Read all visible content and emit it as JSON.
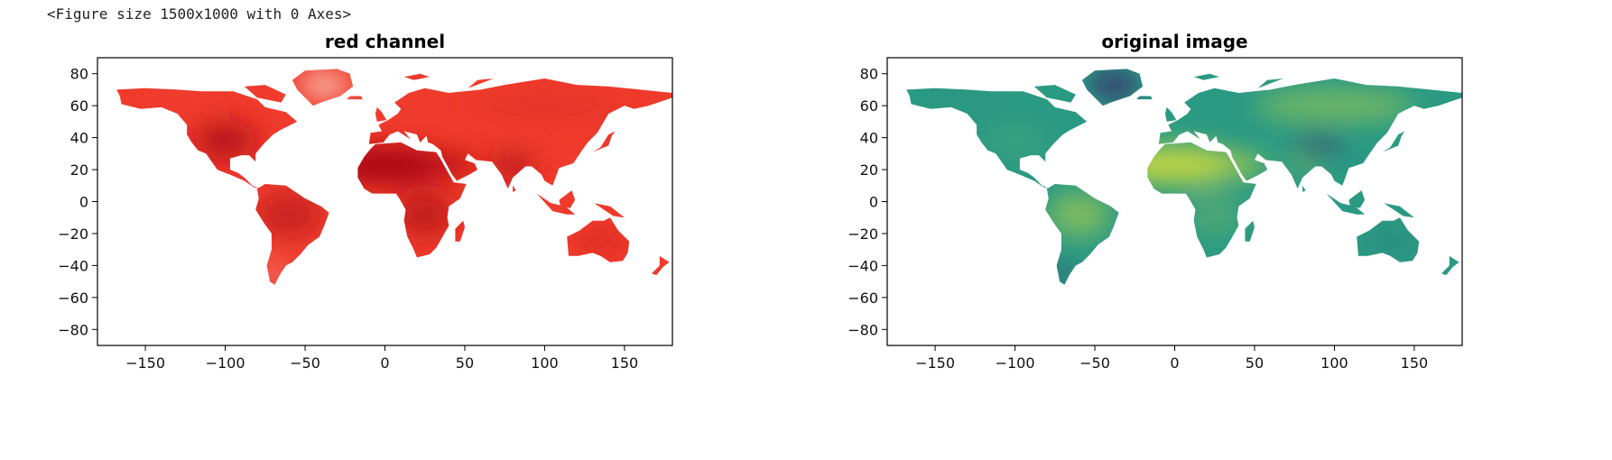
{
  "output_text": "<Figure size 1500x1000 with 0 Axes>",
  "chart_data": [
    {
      "type": "heatmap",
      "title": "red channel",
      "xlim": [
        -180,
        180
      ],
      "ylim": [
        -90,
        90
      ],
      "xticks": [
        -150,
        -100,
        -50,
        0,
        50,
        100,
        150
      ],
      "yticks": [
        80,
        60,
        40,
        20,
        0,
        -20,
        -40,
        -60,
        -80
      ],
      "xtick_labels": [
        "−150",
        "−100",
        "−50",
        "0",
        "50",
        "100",
        "150"
      ],
      "ytick_labels": [
        "80",
        "60",
        "40",
        "20",
        "0",
        "−20",
        "−40",
        "−60",
        "−80"
      ],
      "colormap": "Reds",
      "colors": {
        "low": "#fde0d3",
        "mid": "#ef3b2c",
        "high": "#99000d",
        "nodata": "#ffffff"
      }
    },
    {
      "type": "heatmap",
      "title": "original image",
      "xlim": [
        -180,
        180
      ],
      "ylim": [
        -90,
        90
      ],
      "xticks": [
        -150,
        -100,
        -50,
        0,
        50,
        100,
        150
      ],
      "yticks": [
        80,
        60,
        40,
        20,
        0,
        -20,
        -40,
        -60,
        -80
      ],
      "xtick_labels": [
        "−150",
        "−100",
        "−50",
        "0",
        "50",
        "100",
        "150"
      ],
      "ytick_labels": [
        "80",
        "60",
        "40",
        "20",
        "0",
        "−20",
        "−40",
        "−60",
        "−80"
      ],
      "colormap": "viridis",
      "colors": {
        "low": "#3b1f6b",
        "mid": "#2a9a83",
        "high": "#e2e233",
        "nodata": "#ffffff"
      }
    }
  ]
}
